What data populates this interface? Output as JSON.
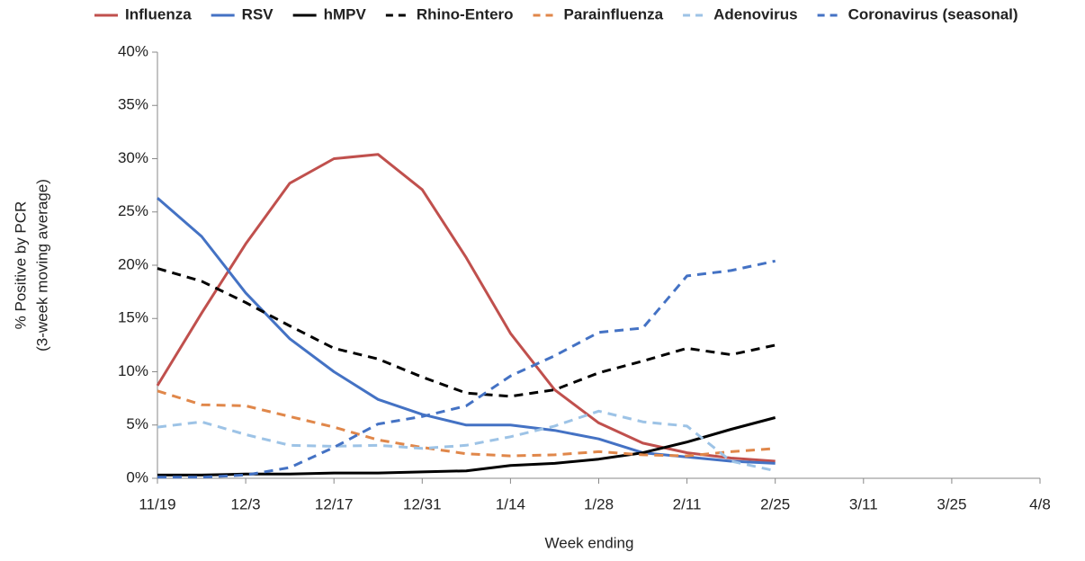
{
  "chart_data": {
    "type": "line",
    "x_label": "Week ending",
    "y_label": [
      "% Positive by PCR",
      "(3-week moving average)"
    ],
    "categories": [
      "11/19",
      null,
      "12/3",
      null,
      "12/17",
      null,
      "12/31",
      null,
      "1/14",
      null,
      "1/28",
      null,
      "2/11",
      null,
      "2/25",
      null,
      "3/11",
      null,
      "3/25",
      null,
      "4/8"
    ],
    "ylim": [
      0,
      40
    ],
    "yticks": [
      {
        "value": 0,
        "label": "0%"
      },
      {
        "value": 5,
        "label": "5%"
      },
      {
        "value": 10,
        "label": "10%"
      },
      {
        "value": 15,
        "label": "15%"
      },
      {
        "value": 20,
        "label": "20%"
      },
      {
        "value": 25,
        "label": "25%"
      },
      {
        "value": 30,
        "label": "30%"
      },
      {
        "value": 35,
        "label": "35%"
      },
      {
        "value": 40,
        "label": "40%"
      }
    ],
    "legend": "top",
    "series": [
      {
        "name": "Influenza",
        "color": "#c0504d",
        "dashed": false,
        "values": [
          8.7,
          15.5,
          22,
          27.7,
          30,
          30.4,
          27.1,
          20.7,
          13.6,
          8.3,
          5.2,
          3.3,
          2.4,
          1.9,
          1.6,
          null,
          null,
          null,
          null,
          null,
          null
        ]
      },
      {
        "name": "RSV",
        "color": "#4472c4",
        "dashed": false,
        "values": [
          26.3,
          22.7,
          17.4,
          13.1,
          10.0,
          7.4,
          6.0,
          5.0,
          5.0,
          4.5,
          3.7,
          2.4,
          2.0,
          1.6,
          1.4,
          null,
          null,
          null,
          null,
          null,
          null
        ]
      },
      {
        "name": "hMPV",
        "color": "#000000",
        "dashed": false,
        "values": [
          0.3,
          0.3,
          0.4,
          0.4,
          0.5,
          0.5,
          0.6,
          0.7,
          1.2,
          1.4,
          1.8,
          2.4,
          3.4,
          4.6,
          5.7,
          null,
          null,
          null,
          null,
          null,
          null
        ]
      },
      {
        "name": "Rhino-Entero",
        "color": "#000000",
        "dashed": true,
        "values": [
          19.7,
          18.5,
          16.5,
          14.3,
          12.2,
          11.2,
          9.5,
          8.0,
          7.7,
          8.3,
          9.9,
          11.0,
          12.2,
          11.6,
          12.5,
          null,
          null,
          null,
          null,
          null,
          null
        ]
      },
      {
        "name": "Parainfluenza",
        "color": "#e0874a",
        "dashed": true,
        "values": [
          8.2,
          6.9,
          6.8,
          5.8,
          4.8,
          3.6,
          2.9,
          2.3,
          2.1,
          2.2,
          2.5,
          2.2,
          2.1,
          2.5,
          2.8,
          null,
          null,
          null,
          null,
          null,
          null
        ]
      },
      {
        "name": "Adenovirus",
        "color": "#9dc3e6",
        "dashed": true,
        "values": [
          4.8,
          5.3,
          4.1,
          3.1,
          3.0,
          3.1,
          2.8,
          3.1,
          3.9,
          4.9,
          6.3,
          5.3,
          4.9,
          1.6,
          0.7,
          null,
          null,
          null,
          null,
          null,
          null
        ]
      },
      {
        "name": "Coronavirus (seasonal)",
        "color": "#4472c4",
        "dashed": true,
        "values": [
          0.1,
          0.1,
          0.3,
          1.0,
          2.9,
          5.1,
          5.8,
          6.8,
          9.6,
          11.5,
          13.7,
          14.1,
          19.0,
          19.5,
          20.4,
          null,
          null,
          null,
          null,
          null,
          null
        ]
      }
    ]
  }
}
